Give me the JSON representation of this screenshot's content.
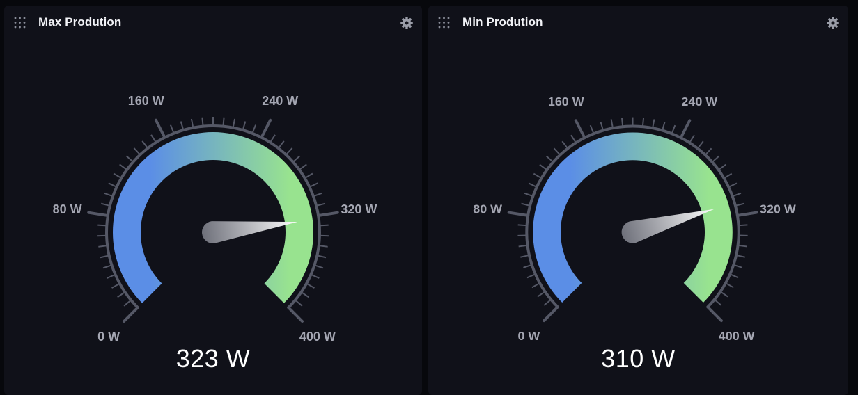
{
  "colors": {
    "background": "#07080c",
    "panel": "#101119",
    "arc_start": "#5b8ee6",
    "arc_end": "#98e38f",
    "ticks": "#555866",
    "tick_label": "#a4a6b2",
    "readout": "#ffffff"
  },
  "icons": {
    "drag": "drag-handle-icon",
    "settings": "gear-icon"
  },
  "panels": [
    {
      "title": "Max Prodution",
      "gauge": {
        "min": 0,
        "max": 400,
        "value": 323,
        "tick_labels": [
          "0 W",
          "80 W",
          "160 W",
          "240 W",
          "320 W",
          "400 W"
        ]
      },
      "readout": "323 W"
    },
    {
      "title": "Min Prodution",
      "gauge": {
        "min": 0,
        "max": 400,
        "value": 310,
        "tick_labels": [
          "0 W",
          "80 W",
          "160 W",
          "240 W",
          "320 W",
          "400 W"
        ]
      },
      "readout": "310 W"
    }
  ]
}
